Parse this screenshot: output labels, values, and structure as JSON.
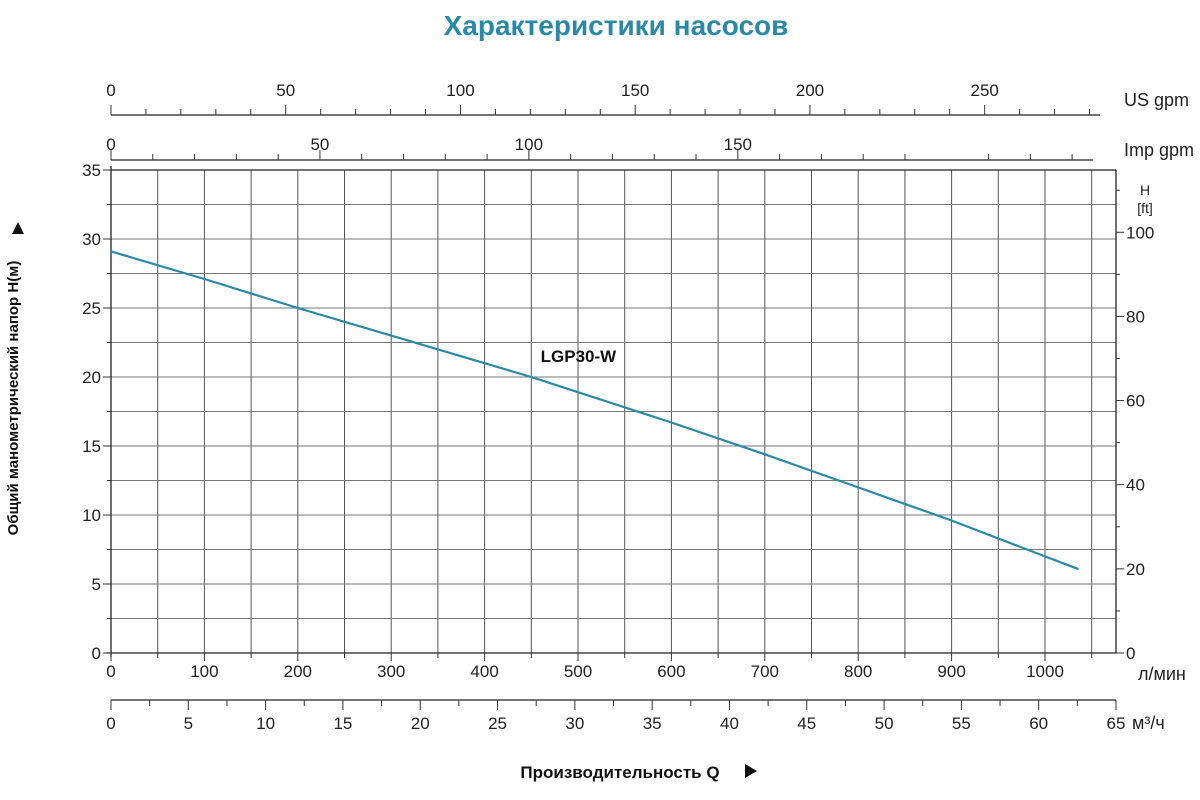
{
  "chart_data": {
    "type": "line",
    "title": "Характеристики насосов",
    "xlabel": "Производительность Q",
    "ylabel": "Общий манометрический напор H(м)",
    "y2label": [
      "H",
      "[ft]"
    ],
    "grid": true,
    "axes": {
      "lmin": {
        "unit": "л/мин",
        "range": [
          0,
          1070
        ],
        "ticks": [
          0,
          100,
          200,
          300,
          400,
          500,
          600,
          700,
          800,
          900,
          1000
        ]
      },
      "m3h": {
        "unit": "м³/ч",
        "range": [
          0,
          65
        ],
        "ticks": [
          0,
          5,
          10,
          15,
          20,
          25,
          30,
          35,
          40,
          45,
          50,
          55,
          60,
          65
        ]
      },
      "usgpm": {
        "unit": "US gpm",
        "range": [
          0,
          283
        ],
        "ticks": [
          0,
          50,
          100,
          150,
          200,
          250
        ]
      },
      "impgpm": {
        "unit": "Imp gpm",
        "range": [
          0,
          235
        ],
        "ticks": [
          0,
          50,
          100,
          150
        ]
      },
      "head_m": {
        "range": [
          0,
          35
        ],
        "ticks": [
          0,
          5,
          10,
          15,
          20,
          25,
          30,
          35
        ]
      },
      "head_ft": {
        "range": [
          0,
          114.8
        ],
        "ticks": [
          0,
          20,
          40,
          60,
          80,
          100
        ]
      }
    },
    "series": [
      {
        "name": "LGP30-W",
        "color": "#2a8aa6",
        "x": [
          0,
          100,
          200,
          300,
          400,
          450,
          500,
          600,
          700,
          800,
          900,
          1000,
          1035
        ],
        "y": [
          29.1,
          27.1,
          25.0,
          23.0,
          21.0,
          20.0,
          18.9,
          16.7,
          14.4,
          12.0,
          9.6,
          7.0,
          6.1
        ]
      }
    ]
  }
}
